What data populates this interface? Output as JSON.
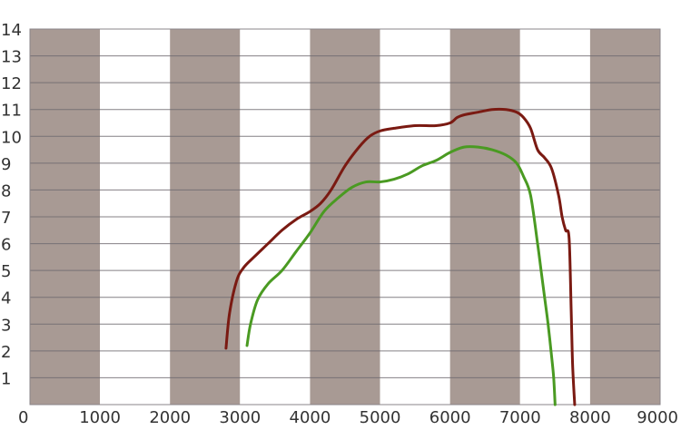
{
  "chart_data": {
    "type": "line",
    "title": "",
    "xlabel": "",
    "ylabel": "",
    "xlim": [
      0,
      9000
    ],
    "ylim": [
      0,
      14
    ],
    "x_ticks": [
      0,
      1000,
      2000,
      3000,
      4000,
      5000,
      6000,
      7000,
      8000,
      9000
    ],
    "y_ticks": [
      1,
      2,
      3,
      4,
      5,
      6,
      7,
      8,
      9,
      10,
      11,
      12,
      13,
      14
    ],
    "grid": true,
    "band_color": "#a89a94",
    "background_color": "#ffffff",
    "series": [
      {
        "color": "#7a1a12",
        "x": [
          2800,
          2850,
          2950,
          3050,
          3200,
          3400,
          3600,
          3800,
          4000,
          4150,
          4300,
          4500,
          4700,
          4850,
          5000,
          5200,
          5500,
          5800,
          6000,
          6100,
          6200,
          6400,
          6600,
          6800,
          6950,
          7050,
          7150,
          7250,
          7350,
          7450,
          7550,
          7600,
          7650,
          7700,
          7730,
          7750,
          7780
        ],
        "y": [
          2.1,
          3.4,
          4.6,
          5.1,
          5.5,
          6.0,
          6.5,
          6.9,
          7.2,
          7.5,
          8.0,
          8.9,
          9.6,
          10.0,
          10.2,
          10.3,
          10.4,
          10.4,
          10.5,
          10.7,
          10.8,
          10.9,
          11.0,
          11.0,
          10.9,
          10.7,
          10.3,
          9.5,
          9.2,
          8.8,
          7.8,
          7.0,
          6.5,
          6.2,
          3.5,
          1.5,
          0.0
        ]
      },
      {
        "color": "#4a9a22",
        "x": [
          3100,
          3150,
          3250,
          3400,
          3600,
          3800,
          4000,
          4200,
          4400,
          4600,
          4800,
          5000,
          5200,
          5400,
          5600,
          5800,
          6000,
          6200,
          6400,
          6600,
          6800,
          6950,
          7050,
          7150,
          7250,
          7300,
          7350,
          7400,
          7450,
          7480,
          7500
        ],
        "y": [
          2.2,
          3.0,
          3.9,
          4.5,
          5.0,
          5.7,
          6.4,
          7.2,
          7.7,
          8.1,
          8.3,
          8.3,
          8.4,
          8.6,
          8.9,
          9.1,
          9.4,
          9.6,
          9.6,
          9.5,
          9.3,
          9.0,
          8.5,
          7.8,
          6.0,
          5.0,
          4.0,
          3.0,
          1.8,
          1.0,
          0.0
        ]
      }
    ]
  }
}
